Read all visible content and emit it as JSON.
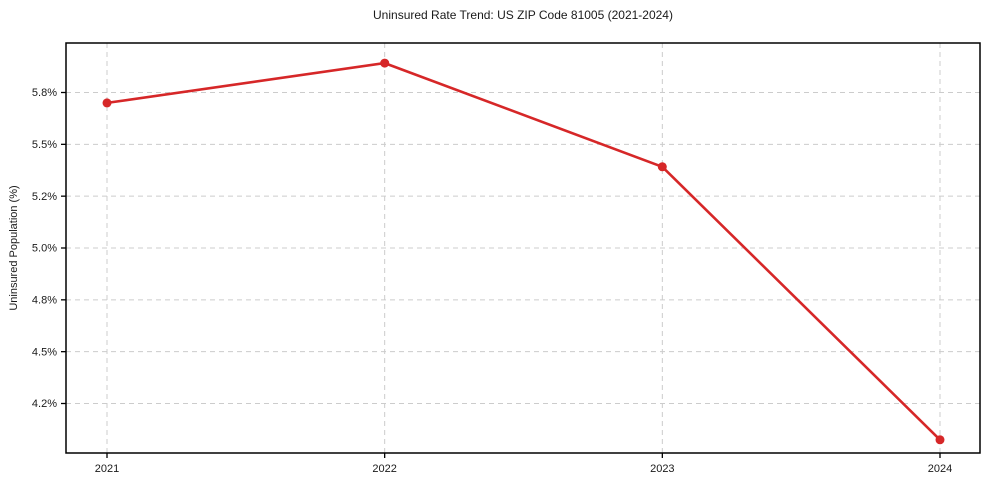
{
  "page": {
    "background_color": "#ffffff"
  },
  "chart_data": {
    "type": "line",
    "title": "Uninsured Rate Trend: US ZIP Code 81005 (2021-2024)",
    "xlabel": "",
    "ylabel": "Uninsured Population (%)",
    "x": [
      "2021",
      "2022",
      "2023",
      "2024"
    ],
    "series": [
      {
        "name": "Uninsured rate",
        "values": [
          5.74,
          5.97,
          5.37,
          3.99
        ]
      }
    ],
    "xtick_labels": [
      "2021",
      "2022",
      "2023",
      "2024"
    ],
    "ytick_values": [
      5.8,
      5.5,
      5.2,
      5.0,
      4.8,
      4.5,
      4.2
    ],
    "ytick_labels": [
      "5.8%",
      "5.5%",
      "5.2%",
      "5.0%",
      "4.8%",
      "4.5%",
      "4.2%"
    ],
    "grid": true,
    "grid_style": "dashed",
    "legend_position": "none",
    "line_color": "#d62728",
    "marker": "circle",
    "grid_color": "#cccccc",
    "spine_color": "#000000",
    "tick_color": "#000000",
    "text_color": "#1a1a1a"
  }
}
